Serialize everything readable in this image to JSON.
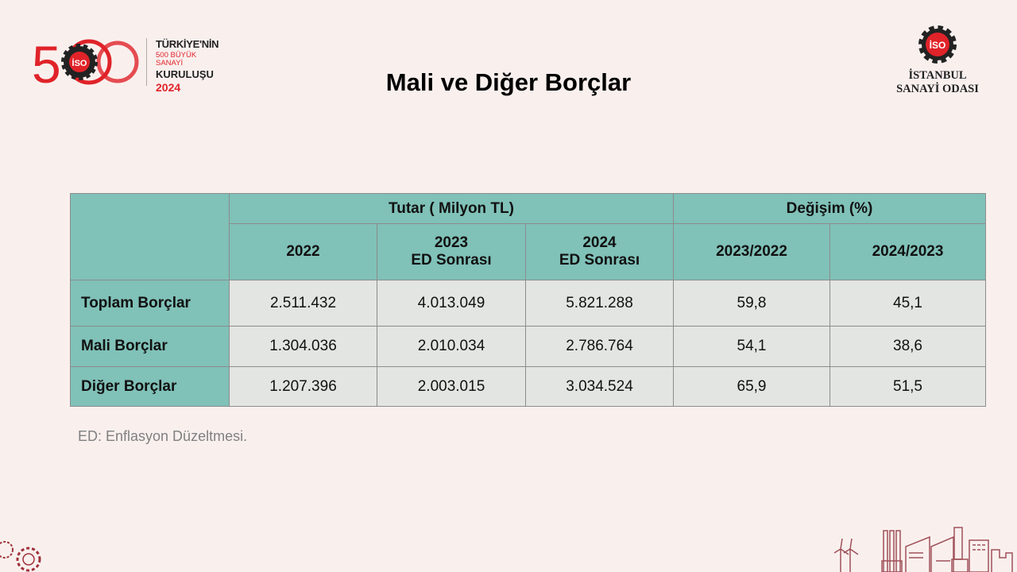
{
  "header": {
    "title": "Mali ve Diğer Borçlar",
    "left_logo": {
      "mark": "500",
      "badge": "İSO",
      "line1": "TÜRKİYE'NİN",
      "line2": "500 BÜYÜK SANAYİ",
      "line3": "KURULUŞU",
      "line4": "2024"
    },
    "right_logo": {
      "badge": "İSO",
      "line1": "İSTANBUL",
      "line2": "SANAYİ ODASI"
    }
  },
  "colors": {
    "brand_red": "#e02329",
    "header_teal": "#80c1b8",
    "cell_grey": "#e2e5e2",
    "background": "#f9f0ee"
  },
  "table": {
    "group_headers": [
      "Tutar ( Milyon TL)",
      "Değişim (%)"
    ],
    "columns": [
      {
        "line1": "2022",
        "line2": ""
      },
      {
        "line1": "2023",
        "line2": "ED Sonrası"
      },
      {
        "line1": "2024",
        "line2": "ED Sonrası"
      },
      {
        "line1": "2023/2022",
        "line2": ""
      },
      {
        "line1": "2024/2023",
        "line2": ""
      }
    ],
    "rows": [
      {
        "label": "Toplam Borçlar",
        "values": [
          "2.511.432",
          "4.013.049",
          "5.821.288",
          "59,8",
          "45,1"
        ]
      },
      {
        "label": "Mali Borçlar",
        "values": [
          "1.304.036",
          "2.010.034",
          "2.786.764",
          "54,1",
          "38,6"
        ]
      },
      {
        "label": "Diğer Borçlar",
        "values": [
          "1.207.396",
          "2.003.015",
          "3.034.524",
          "65,9",
          "51,5"
        ]
      }
    ]
  },
  "footnote": "ED: Enflasyon Düzeltmesi."
}
